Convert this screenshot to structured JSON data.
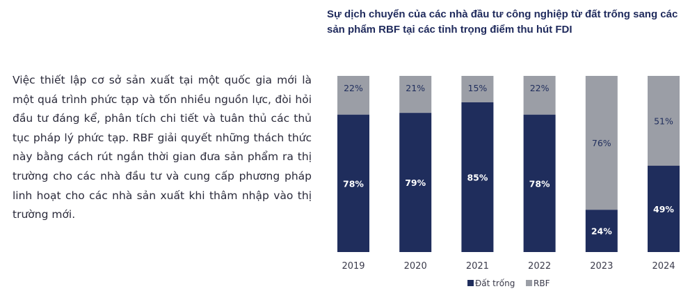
{
  "paragraph": "Việc thiết lập cơ sở sản xuất tại một quốc gia mới là một quá trình phức tạp và tốn nhiều nguồn lực, đòi hỏi đầu tư đáng kể, phân tích chi tiết và tuân thủ các thủ tục pháp lý phức tạp. RBF giải quyết những thách thức này bằng cách rút ngắn thời gian đưa sản phẩm ra thị trường cho các nhà đầu tư và cung cấp phương pháp linh hoạt cho các nhà sản xuất khi thâm nhập vào thị trường mới.",
  "colors": {
    "dat_trong": "#1f2d5c",
    "rbf": "#9b9ea6",
    "dark_label": "#ffffff",
    "light_label": "#1f2d5c"
  },
  "chart_data": {
    "type": "bar",
    "stacked": true,
    "title": "Sự dịch chuyển của các nhà đầu tư công nghiệp từ đất trống sang các sản phẩm RBF tại các tỉnh trọng điểm thu hút FDI",
    "categories": [
      "2019",
      "2020",
      "2021",
      "2022",
      "2023",
      "2024"
    ],
    "series": [
      {
        "name": "Đất trống",
        "values": [
          78,
          79,
          85,
          78,
          24,
          49
        ],
        "labels": [
          "78%",
          "79%",
          "85%",
          "78%",
          "24%",
          "49%"
        ]
      },
      {
        "name": "RBF",
        "values": [
          22,
          21,
          15,
          22,
          76,
          51
        ],
        "labels": [
          "22%",
          "21%",
          "15%",
          "22%",
          "76%",
          "51%"
        ]
      }
    ],
    "ylim": [
      0,
      100
    ],
    "legend_position": "bottom",
    "grid": false
  }
}
